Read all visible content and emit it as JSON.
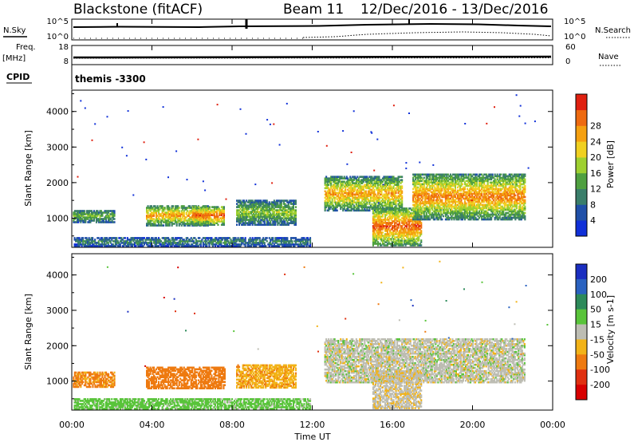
{
  "header": {
    "station": "Blackstone (fitACF)",
    "beam": "Beam 11",
    "date_range": "12/Dec/2016 - 13/Dec/2016"
  },
  "top_panels": {
    "nsky_label": "N.Sky",
    "nsearch_label": "N.Search",
    "freq_label": "Freq.",
    "freq_unit": "[MHz]",
    "nave_label": "Nave",
    "cpid_label": "CPID",
    "cpid_value": "themis -3300",
    "noise_ticks_left": [
      "10^5",
      "10^0"
    ],
    "noise_ticks_right": [
      "10^5",
      "10^0"
    ],
    "freq_ticks": [
      "18",
      "8"
    ],
    "nave_ticks": [
      "60",
      "0"
    ]
  },
  "x_axis": {
    "label": "Time UT",
    "ticks": [
      "00:00",
      "04:00",
      "08:00",
      "12:00",
      "16:00",
      "20:00",
      "00:00"
    ]
  },
  "power_panel": {
    "ylabel": "Slant Range [km]",
    "yticks": [
      "1000",
      "2000",
      "3000",
      "4000"
    ],
    "colorbar_label": "Power [dB]",
    "colorbar_ticks": [
      "4",
      "8",
      "12",
      "16",
      "20",
      "24",
      "28"
    ],
    "colorbar_colors": [
      "#1030d8",
      "#2050a8",
      "#3a7e6a",
      "#4fa040",
      "#9ed030",
      "#f0d020",
      "#f5a010",
      "#ee6a10",
      "#e02010"
    ]
  },
  "velocity_panel": {
    "ylabel": "Slant Range [km]",
    "yticks": [
      "1000",
      "2000",
      "3000",
      "4000"
    ],
    "colorbar_label": "Velocity [m s-1]",
    "colorbar_ticks": [
      "200",
      "100",
      "50",
      "15",
      "-15",
      "-50",
      "-100",
      "-200"
    ],
    "colorbar_colors": [
      "#1a2ec0",
      "#2a62c0",
      "#2d8a5a",
      "#59c43a",
      "#bdbdb3",
      "#f2b318",
      "#ee7a10",
      "#e03010",
      "#d80000"
    ]
  },
  "chart_data": {
    "type": "heatmap",
    "title": "Blackstone (fitACF) Beam 11 12/Dec/2016 - 13/Dec/2016",
    "xlabel": "Time UT",
    "ylabel": "Slant Range [km]",
    "xlim": [
      0,
      24
    ],
    "ylim": [
      180,
      4600
    ],
    "power_echoes": [
      {
        "t0": 0.05,
        "t1": 2.1,
        "r0": 870,
        "r1": 1230,
        "core_db": 14,
        "edge_db": 6
      },
      {
        "t0": 3.7,
        "t1": 6.8,
        "r0": 780,
        "r1": 1350,
        "core_db": 24,
        "edge_db": 8
      },
      {
        "t0": 6.0,
        "t1": 7.6,
        "r0": 800,
        "r1": 1320,
        "core_db": 28,
        "edge_db": 10
      },
      {
        "t0": 8.2,
        "t1": 11.2,
        "r0": 800,
        "r1": 1500,
        "core_db": 16,
        "edge_db": 6
      },
      {
        "t0": 12.6,
        "t1": 16.5,
        "r0": 1200,
        "r1": 2150,
        "core_db": 24,
        "edge_db": 8
      },
      {
        "t0": 15.0,
        "t1": 17.4,
        "r0": 220,
        "r1": 1300,
        "core_db": 28,
        "edge_db": 10
      },
      {
        "t0": 17.0,
        "t1": 22.6,
        "r0": 950,
        "r1": 2250,
        "core_db": 26,
        "edge_db": 8
      },
      {
        "t0": 0.1,
        "t1": 11.9,
        "r0": 200,
        "r1": 450,
        "core_db": 10,
        "edge_db": 4
      }
    ],
    "velocity_echoes": [
      {
        "t0": 0.05,
        "t1": 2.1,
        "r0": 820,
        "r1": 1250,
        "velocity": -60
      },
      {
        "t0": 3.7,
        "t1": 7.6,
        "r0": 780,
        "r1": 1400,
        "velocity": -70
      },
      {
        "t0": 8.2,
        "t1": 11.2,
        "r0": 800,
        "r1": 1450,
        "velocity": -40
      },
      {
        "t0": 12.6,
        "t1": 22.6,
        "r0": 950,
        "r1": 2200,
        "velocity": 0
      },
      {
        "t0": 15.0,
        "t1": 17.4,
        "r0": 220,
        "r1": 1300,
        "velocity": -5
      },
      {
        "t0": 0.1,
        "t1": 11.9,
        "r0": 200,
        "r1": 500,
        "velocity": 30
      }
    ]
  }
}
